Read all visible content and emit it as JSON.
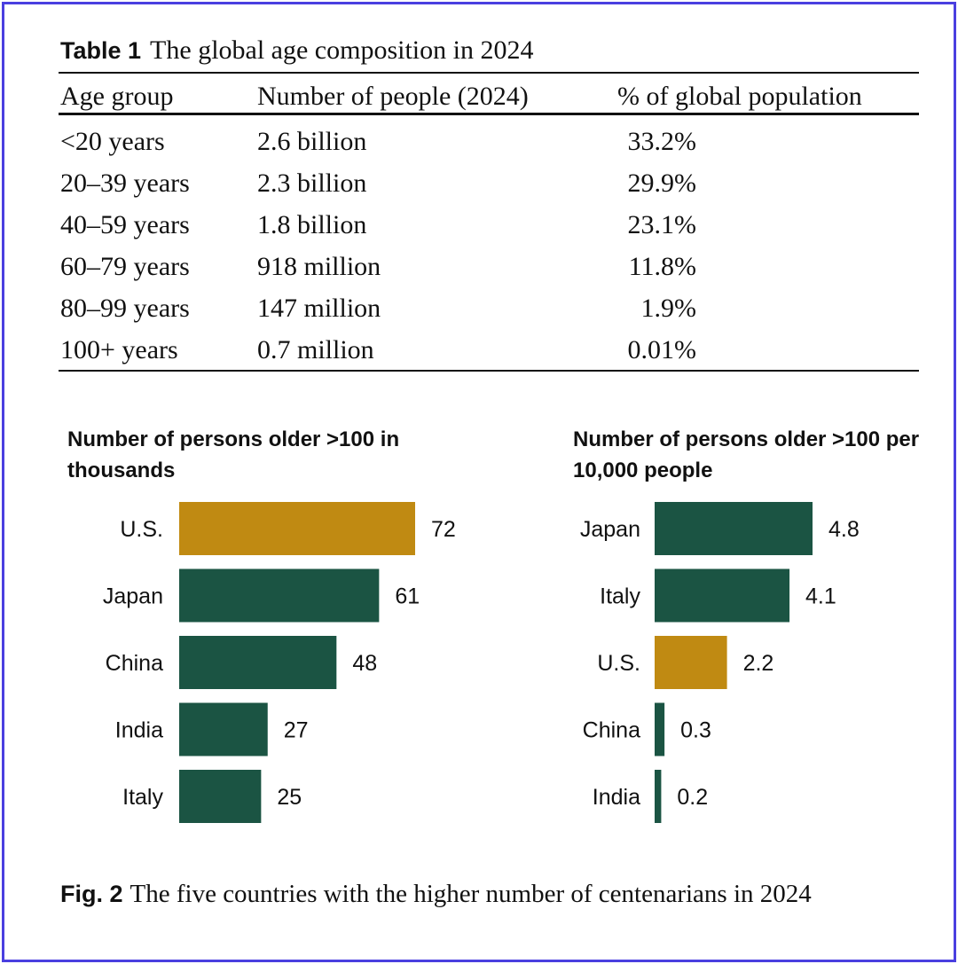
{
  "table": {
    "label": "Table 1",
    "title": "The global age composition in 2024",
    "headers": [
      "Age group",
      "Number of people (2024)",
      "% of global population"
    ],
    "rows": [
      [
        "<20 years",
        "2.6 billion",
        "33.2%"
      ],
      [
        "20–39 years",
        "2.3 billion",
        "29.9%"
      ],
      [
        "40–59 years",
        "1.8 billion",
        "23.1%"
      ],
      [
        "60–79 years",
        "918 million",
        "11.8%"
      ],
      [
        "80–99 years",
        "147 million",
        "1.9%"
      ],
      [
        "100+ years",
        "0.7 million",
        "0.01%"
      ]
    ]
  },
  "chart_data": [
    {
      "type": "bar",
      "orientation": "horizontal",
      "title": "Number of persons older >100 in thousands",
      "categories": [
        "U.S.",
        "Japan",
        "China",
        "India",
        "Italy"
      ],
      "values": [
        72,
        61,
        48,
        27,
        25
      ],
      "value_labels": [
        "72",
        "61",
        "48",
        "27",
        "25"
      ],
      "highlight": "U.S.",
      "colors": {
        "default": "#1b5443",
        "highlight": "#c08a12"
      },
      "grid": false
    },
    {
      "type": "bar",
      "orientation": "horizontal",
      "title": "Number of persons older >100 per 10,000 people",
      "categories": [
        "Japan",
        "Italy",
        "U.S.",
        "China",
        "India"
      ],
      "values": [
        4.8,
        4.1,
        2.2,
        0.3,
        0.2
      ],
      "value_labels": [
        "4.8",
        "4.1",
        "2.2",
        "0.3",
        "0.2"
      ],
      "highlight": "U.S.",
      "colors": {
        "default": "#1b5443",
        "highlight": "#c08a12"
      },
      "grid": false
    }
  ],
  "figure": {
    "label": "Fig. 2",
    "caption": "The five countries with the higher number of centenarians in 2024"
  }
}
